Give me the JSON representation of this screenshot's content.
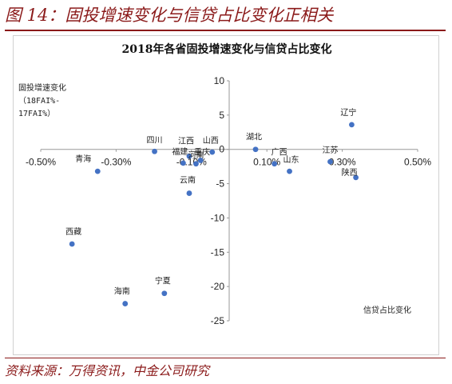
{
  "figure": {
    "title": "图 14：固投增速变化与信贷占比变化正相关",
    "source": "资料来源：万得资讯，中金公司研究"
  },
  "chart_data": {
    "type": "scatter",
    "title": "2018年各省固投增速变化与信贷占比变化",
    "xlabel": "信贷占比变化",
    "ylabel_lines": [
      "固投增速变化",
      "（18FAI%-",
      "17FAI%）"
    ],
    "xlim": [
      -0.5,
      0.5
    ],
    "ylim": [
      -25,
      10
    ],
    "xticks": [
      -0.5,
      -0.3,
      -0.1,
      0.1,
      0.3,
      0.5
    ],
    "xtick_labels": [
      "-0.50%",
      "-0.30%",
      "-0.10%",
      "0.10%",
      "0.30%",
      "0.50%"
    ],
    "yticks": [
      10,
      5,
      0,
      -5,
      -10,
      -15,
      -20,
      -25
    ],
    "ytick_labels": [
      "10",
      "5",
      "0",
      "-5",
      "-10",
      "-15",
      "-20",
      "-25"
    ],
    "grid": false,
    "point_color": "#4472c4",
    "points": [
      {
        "label": "辽宁",
        "x": 0.325,
        "y": 3.6
      },
      {
        "label": "湖北",
        "x": 0.07,
        "y": 0.0
      },
      {
        "label": "广西",
        "x": 0.12,
        "y": -2.1
      },
      {
        "label": "山东",
        "x": 0.16,
        "y": -3.2
      },
      {
        "label": "江苏",
        "x": 0.268,
        "y": -1.8
      },
      {
        "label": "陕西",
        "x": 0.336,
        "y": -4.1
      },
      {
        "label": "四川",
        "x": -0.198,
        "y": -0.3
      },
      {
        "label": "青海",
        "x": -0.349,
        "y": -3.2
      },
      {
        "label": "福建",
        "x": -0.122,
        "y": -2.0
      },
      {
        "label": "江西",
        "x": -0.106,
        "y": -1.0
      },
      {
        "label": "河南",
        "x": -0.088,
        "y": -2.1
      },
      {
        "label": "重庆",
        "x": -0.076,
        "y": -1.6
      },
      {
        "label": "山西",
        "x": -0.045,
        "y": -0.4
      },
      {
        "label": "云南",
        "x": -0.106,
        "y": -6.4
      },
      {
        "label": "西藏",
        "x": -0.417,
        "y": -13.8
      },
      {
        "label": "宁夏",
        "x": -0.172,
        "y": -21.0
      },
      {
        "label": "海南",
        "x": -0.276,
        "y": -22.5
      }
    ]
  }
}
